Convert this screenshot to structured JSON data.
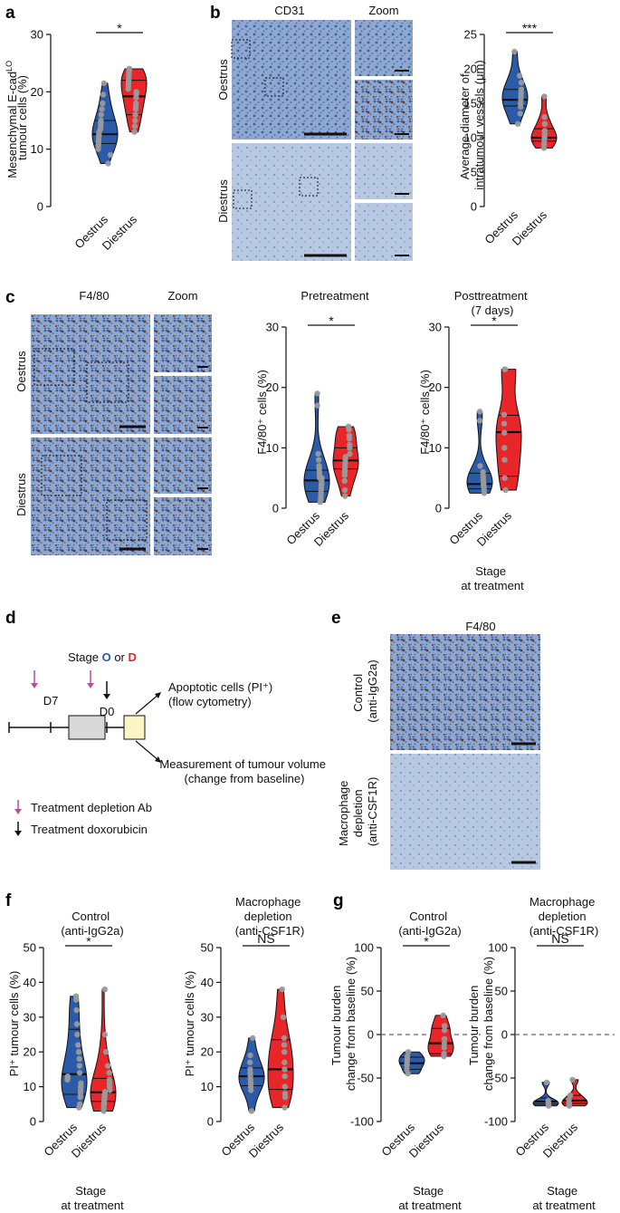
{
  "colors": {
    "oestrus": "#2B5AA8",
    "diestrus": "#E8262A",
    "dot": "#9A9A9A",
    "depletion": "#B5509E",
    "doxorubicin": "#111111"
  },
  "panels": {
    "a": {
      "label": "a",
      "ylabel_lines": [
        "Mesenchymal E-cad^LO",
        "tumour cells (%)"
      ],
      "sig": "*",
      "xticks": [
        "Oestrus",
        "Diestrus"
      ]
    },
    "b": {
      "label": "b",
      "img_title": "CD31",
      "zoom_title": "Zoom",
      "row_labels": [
        "Oestrus",
        "Diestrus"
      ],
      "ylabel_lines": [
        "Average diameter of",
        "intratumour vessels (μm)"
      ],
      "sig": "***",
      "xticks": [
        "Oestrus",
        "Diestrus"
      ]
    },
    "c": {
      "label": "c",
      "img_title": "F4/80",
      "zoom_title": "Zoom",
      "row_labels": [
        "Oestrus",
        "Diestrus"
      ],
      "pre_title": "Pretreatment",
      "post_title_lines": [
        "Posttreatment",
        "(7 days)"
      ],
      "ylabel": "F4/80⁺ cells (%)",
      "sig_pre": "*",
      "sig_post": "*",
      "xticks": [
        "Oestrus",
        "Diestrus"
      ],
      "xlabel_lines": [
        "Stage",
        "at treatment"
      ]
    },
    "d": {
      "label": "d",
      "stage_prefix": "Stage ",
      "stage_o": "O",
      "stage_or": " or ",
      "stage_d": "D",
      "d7": "D7",
      "d0": "D0",
      "out1_lines": [
        "Apoptotic cells (PI⁺)",
        "(flow cytometry)"
      ],
      "out2_lines": [
        "Measurement of tumour volume",
        "(change from baseline)"
      ],
      "legend_depletion": "Treatment depletion Ab",
      "legend_doxorubicin": "Treatment doxorubicin"
    },
    "e": {
      "label": "e",
      "img_title": "F4/80",
      "row1_lines": [
        "Control",
        "(anti-IgG2a)"
      ],
      "row2_lines": [
        "Macrophage",
        "depletion",
        "(anti-CSF1R)"
      ]
    },
    "f": {
      "label": "f",
      "title1_lines": [
        "Control",
        "(anti-IgG2a)"
      ],
      "title2_lines": [
        "Macrophage",
        "depletion",
        "(anti-CSF1R)"
      ],
      "ylabel": "PI⁺ tumour cells (%)",
      "sig1": "*",
      "sig2": "NS",
      "xticks": [
        "Oestrus",
        "Diestrus"
      ],
      "xlabel_lines": [
        "Stage",
        "at treatment"
      ]
    },
    "g": {
      "label": "g",
      "title1_lines": [
        "Control",
        "(anti-IgG2a)"
      ],
      "title2_lines": [
        "Macrophage",
        "depletion",
        "(anti-CSF1R)"
      ],
      "ylabel_lines": [
        "Tumour burden",
        "change from baseline (%)"
      ],
      "sig1": "*",
      "sig2": "NS",
      "xticks": [
        "Oestrus",
        "Diestrus"
      ],
      "xlabel_lines": [
        "Stage",
        "at treatment"
      ]
    }
  },
  "chart_data": [
    {
      "panel": "a",
      "type": "violin",
      "ylim": [
        0,
        30
      ],
      "yticks": [
        0,
        10,
        20,
        30
      ],
      "categories": [
        "Oestrus",
        "Diestrus"
      ],
      "series": [
        {
          "values": [
            7.5,
            9,
            10,
            10.5,
            11,
            11.5,
            12,
            12.5,
            12.5,
            13,
            13.5,
            14,
            14.5,
            15,
            16,
            17,
            18,
            19.5,
            21.5
          ],
          "median": 12.6,
          "q1": 11,
          "q3": 15
        },
        {
          "values": [
            13,
            14,
            15,
            16,
            17,
            17.5,
            18,
            19,
            19.5,
            20,
            20.5,
            21,
            21.5,
            22,
            22.5,
            23,
            23.5,
            24,
            24
          ],
          "median": 19.2,
          "q1": 16,
          "q3": 22
        }
      ]
    },
    {
      "panel": "b",
      "type": "violin",
      "ylim": [
        0,
        25
      ],
      "yticks": [
        0,
        5,
        10,
        15,
        20,
        25
      ],
      "categories": [
        "Oestrus",
        "Diestrus"
      ],
      "series": [
        {
          "values": [
            12,
            13.5,
            14.5,
            15,
            15.5,
            16,
            16.5,
            17,
            18,
            19,
            22.5
          ],
          "median": 15.5,
          "q1": 14.6,
          "q3": 17
        },
        {
          "values": [
            8.5,
            9,
            9.5,
            10,
            10,
            10.5,
            11,
            12,
            13,
            16
          ],
          "median": 10,
          "q1": 9.5,
          "q3": 11.3
        }
      ]
    },
    {
      "panel": "c-pre",
      "type": "violin",
      "ylim": [
        0,
        30
      ],
      "yticks": [
        0,
        10,
        20,
        30
      ],
      "categories": [
        "Oestrus",
        "Diestrus"
      ],
      "series": [
        {
          "values": [
            1,
            1.5,
            2,
            2.5,
            3,
            3.5,
            4,
            4,
            4.5,
            5,
            5,
            5.5,
            6,
            6.5,
            7,
            8,
            9,
            17,
            19
          ],
          "median": 4.6,
          "q1": 2.8,
          "q3": 6.3
        },
        {
          "values": [
            2,
            3,
            4.5,
            5.5,
            6,
            6.5,
            7,
            7.5,
            8,
            8.5,
            9,
            10,
            10.5,
            11.5,
            12,
            13,
            13.5,
            13.5
          ],
          "median": 7.9,
          "q1": 6.5,
          "q3": 10
        }
      ]
    },
    {
      "panel": "c-post",
      "type": "violin",
      "ylim": [
        0,
        30
      ],
      "yticks": [
        0,
        10,
        20,
        30
      ],
      "categories": [
        "Oestrus",
        "Diestrus"
      ],
      "series": [
        {
          "values": [
            2.5,
            3,
            3.5,
            3.5,
            4,
            4,
            4.5,
            5,
            5.5,
            6,
            7,
            14.5,
            16
          ],
          "median": 4,
          "q1": 3.2,
          "q3": 5.8
        },
        {
          "values": [
            3,
            5,
            8,
            10,
            12.5,
            14,
            15.5,
            23,
            23
          ],
          "median": 12.6,
          "q1": 5.3,
          "q3": 15.4
        }
      ]
    },
    {
      "panel": "f-control",
      "type": "violin",
      "ylim": [
        0,
        50
      ],
      "yticks": [
        0,
        10,
        20,
        30,
        40,
        50
      ],
      "categories": [
        "Oestrus",
        "Diestrus"
      ],
      "series": [
        {
          "values": [
            4,
            5,
            7,
            8,
            9,
            10,
            11,
            12,
            12.5,
            13,
            14,
            16,
            18,
            20,
            22,
            25,
            28,
            32,
            35,
            36
          ],
          "median": 13.6,
          "q1": 7.8,
          "q3": 26.5
        },
        {
          "values": [
            3,
            4,
            5,
            5.5,
            6,
            6.5,
            7,
            7.5,
            8,
            8.5,
            9,
            10,
            11,
            12,
            14,
            16,
            20,
            25,
            38
          ],
          "median": 8.4,
          "q1": 5.8,
          "q3": 12.4
        }
      ]
    },
    {
      "panel": "f-depletion",
      "type": "violin",
      "ylim": [
        0,
        50
      ],
      "yticks": [
        0,
        10,
        20,
        30,
        40,
        50
      ],
      "categories": [
        "Oestrus",
        "Diestrus"
      ],
      "series": [
        {
          "values": [
            3,
            9,
            10,
            11,
            12,
            13,
            14,
            15,
            17,
            19,
            24
          ],
          "median": 13,
          "q1": 10.3,
          "q3": 15.4
        },
        {
          "values": [
            4,
            7,
            8,
            10,
            13,
            15,
            17,
            20,
            22,
            24,
            30,
            38
          ],
          "median": 15,
          "q1": 9.2,
          "q3": 23.5
        }
      ]
    },
    {
      "panel": "g-control",
      "type": "violin",
      "ylim": [
        -100,
        100
      ],
      "yticks": [
        -100,
        -50,
        0,
        50,
        100
      ],
      "categories": [
        "Oestrus",
        "Diestrus"
      ],
      "series": [
        {
          "values": [
            -45,
            -40,
            -35,
            -32,
            -28,
            -25,
            -20
          ],
          "median": -33,
          "q1": -40,
          "q3": -26
        },
        {
          "values": [
            -25,
            -22,
            -15,
            -10,
            -5,
            5,
            10,
            22
          ],
          "median": -10,
          "q1": -22,
          "q3": 7
        }
      ]
    },
    {
      "panel": "g-depletion",
      "type": "violin",
      "ylim": [
        -100,
        100
      ],
      "yticks": [
        -100,
        -50,
        0,
        50,
        100
      ],
      "categories": [
        "Oestrus",
        "Diestrus"
      ],
      "series": [
        {
          "values": [
            -82,
            -80,
            -78,
            -76,
            -55
          ],
          "median": -77,
          "q1": -80,
          "q3": -73
        },
        {
          "values": [
            -82,
            -80,
            -78,
            -75,
            -70,
            -52
          ],
          "median": -76,
          "q1": -79,
          "q3": -70
        }
      ]
    }
  ]
}
